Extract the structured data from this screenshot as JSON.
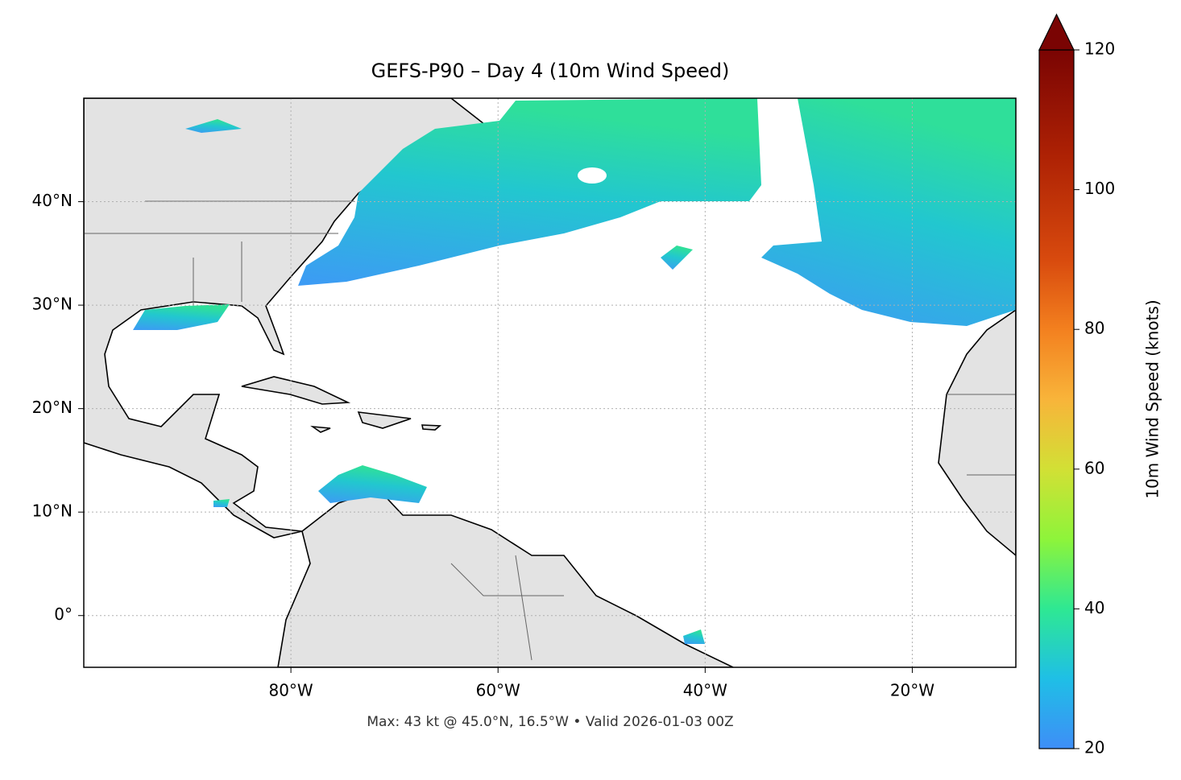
{
  "chart_data": {
    "type": "map",
    "title": "GEFS-P90 – Day 4 (10m Wind Speed)",
    "footer": "Max: 43 kt @ 45.0°N, 16.5°W • Valid 2026-01-03 00Z",
    "xlim": [
      -100,
      -10
    ],
    "ylim": [
      -5,
      50
    ],
    "xticks": [
      {
        "value": -80,
        "label": "80°W"
      },
      {
        "value": -60,
        "label": "60°W"
      },
      {
        "value": -40,
        "label": "40°W"
      },
      {
        "value": -20,
        "label": "20°W"
      }
    ],
    "yticks": [
      {
        "value": 0,
        "label": "0°"
      },
      {
        "value": 10,
        "label": "10°N"
      },
      {
        "value": 20,
        "label": "20°N"
      },
      {
        "value": 30,
        "label": "30°N"
      },
      {
        "value": 40,
        "label": "40°N"
      }
    ],
    "grid": true,
    "colorbar": {
      "label": "10m Wind Speed (knots)",
      "lim": [
        20,
        120
      ],
      "ticks": [
        20,
        40,
        60,
        80,
        100,
        120
      ],
      "extend": "max"
    }
  }
}
